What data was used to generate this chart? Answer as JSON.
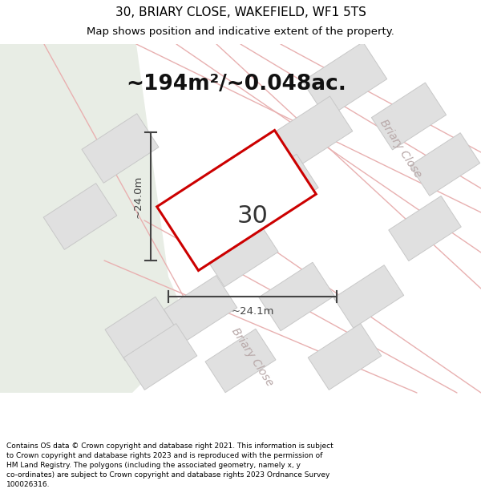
{
  "title_line1": "30, BRIARY CLOSE, WAKEFIELD, WF1 5TS",
  "title_line2": "Map shows position and indicative extent of the property.",
  "area_text": "~194m²/~0.048ac.",
  "label_number": "30",
  "dim_height": "~24.0m",
  "dim_width": "~24.1m",
  "footer_lines": [
    "Contains OS data © Crown copyright and database right 2021. This information is subject",
    "to Crown copyright and database rights 2023 and is reproduced with the permission of",
    "HM Land Registry. The polygons (including the associated geometry, namely x, y",
    "co-ordinates) are subject to Crown copyright and database rights 2023 Ordnance Survey",
    "100026316."
  ],
  "bg_map_color": "#f8f8f5",
  "bg_green_color": "#e8ede5",
  "road_line_color": "#e8b0b0",
  "building_color": "#e0e0e0",
  "building_outline": "#c8c8c8",
  "plot_outline_color": "#cc0000",
  "plot_fill_color": "#ffffff",
  "dim_line_color": "#444444",
  "road_label_color": "#b8a8a8",
  "title_fontsize": 11,
  "subtitle_fontsize": 9.5,
  "area_fontsize": 19,
  "number_fontsize": 22,
  "dim_fontsize": 9.5,
  "road_label_fontsize": 10,
  "footer_fontsize": 6.5
}
